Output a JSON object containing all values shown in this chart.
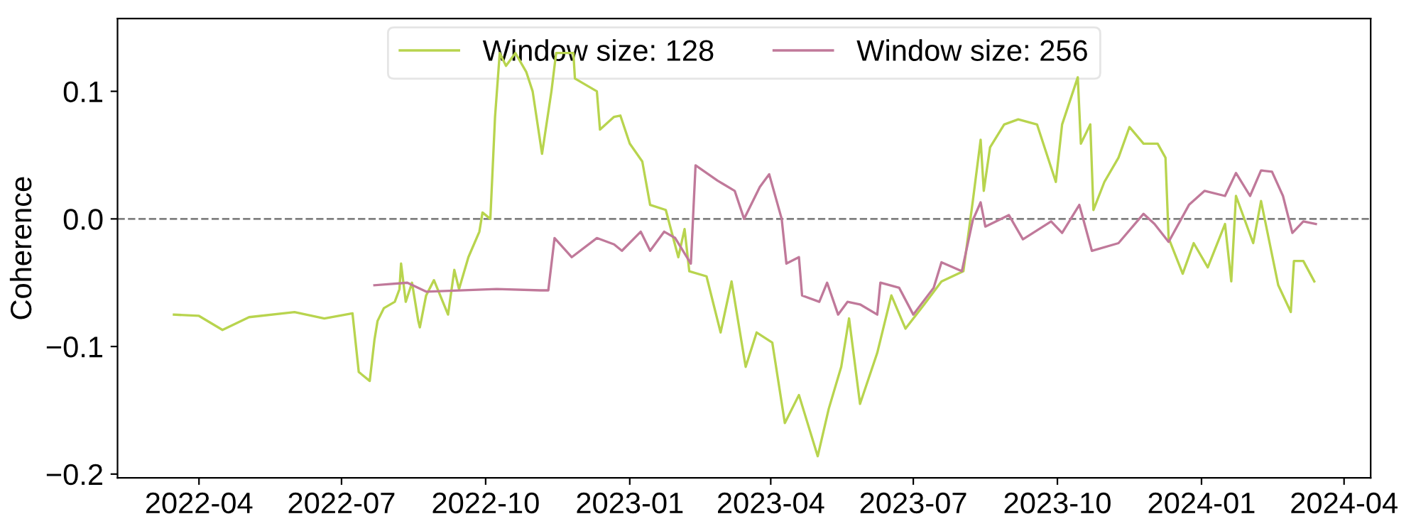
{
  "chart_data": {
    "type": "line",
    "ylabel": "Coherence",
    "legend": "top",
    "grid": false,
    "line_style": "solid",
    "marker": "none",
    "xlim": [
      "2022-02-08",
      "2024-04-18"
    ],
    "ylim": [
      -0.203,
      0.157
    ],
    "yticks": [
      {
        "value": -0.2,
        "label": "−0.2"
      },
      {
        "value": -0.1,
        "label": "−0.1"
      },
      {
        "value": 0.0,
        "label": "0.0"
      },
      {
        "value": 0.1,
        "label": "0.1"
      }
    ],
    "xticks": [
      {
        "value": "2022-04-01",
        "label": "2022-04"
      },
      {
        "value": "2022-07-01",
        "label": "2022-07"
      },
      {
        "value": "2022-10-01",
        "label": "2022-10"
      },
      {
        "value": "2023-01-01",
        "label": "2023-01"
      },
      {
        "value": "2023-04-01",
        "label": "2023-04"
      },
      {
        "value": "2023-07-01",
        "label": "2023-07"
      },
      {
        "value": "2023-10-01",
        "label": "2023-10"
      },
      {
        "value": "2024-01-01",
        "label": "2024-01"
      },
      {
        "value": "2024-04-01",
        "label": "2024-04"
      }
    ],
    "ref_lines": [
      {
        "axis": "y",
        "value": 0,
        "color": "#808080",
        "line_style": "dashed"
      }
    ],
    "series": [
      {
        "name": "Window size: 128",
        "color": "#b8d44e",
        "x": [
          "2022-03-16",
          "2022-04-01",
          "2022-04-16",
          "2022-05-03",
          "2022-06-01",
          "2022-06-20",
          "2022-07-08",
          "2022-07-12",
          "2022-07-19",
          "2022-07-22",
          "2022-07-24",
          "2022-07-28",
          "2022-08-04",
          "2022-08-07",
          "2022-08-08",
          "2022-08-11",
          "2022-08-15",
          "2022-08-19",
          "2022-08-20",
          "2022-08-24",
          "2022-08-29",
          "2022-09-07",
          "2022-09-11",
          "2022-09-14",
          "2022-09-20",
          "2022-09-27",
          "2022-09-29",
          "2022-10-04",
          "2022-10-07",
          "2022-10-10",
          "2022-10-14",
          "2022-10-20",
          "2022-10-27",
          "2022-10-31",
          "2022-11-06",
          "2022-11-12",
          "2022-11-15",
          "2022-11-26",
          "2022-11-27",
          "2022-12-11",
          "2022-12-13",
          "2022-12-22",
          "2022-12-26",
          "2023-01-01",
          "2023-01-09",
          "2023-01-14",
          "2023-01-24",
          "2023-02-01",
          "2023-02-05",
          "2023-02-08",
          "2023-02-19",
          "2023-02-28",
          "2023-03-07",
          "2023-03-16",
          "2023-03-23",
          "2023-04-02",
          "2023-04-10",
          "2023-04-19",
          "2023-05-01",
          "2023-05-08",
          "2023-05-16",
          "2023-05-21",
          "2023-05-28",
          "2023-06-08",
          "2023-06-17",
          "2023-06-26",
          "2023-07-08",
          "2023-07-19",
          "2023-08-02",
          "2023-08-08",
          "2023-08-13",
          "2023-08-15",
          "2023-08-19",
          "2023-08-28",
          "2023-09-06",
          "2023-09-18",
          "2023-09-30",
          "2023-10-04",
          "2023-10-14",
          "2023-10-16",
          "2023-10-22",
          "2023-10-24",
          "2023-10-31",
          "2023-11-09",
          "2023-11-16",
          "2023-11-25",
          "2023-12-04",
          "2023-12-09",
          "2023-12-11",
          "2023-12-20",
          "2023-12-27",
          "2024-01-05",
          "2024-01-16",
          "2024-01-20",
          "2024-01-23",
          "2024-02-03",
          "2024-02-08",
          "2024-02-19",
          "2024-02-27",
          "2024-02-29",
          "2024-03-06",
          "2024-03-13"
        ],
        "values": [
          -0.075,
          -0.076,
          -0.087,
          -0.077,
          -0.073,
          -0.078,
          -0.074,
          -0.12,
          -0.127,
          -0.095,
          -0.08,
          -0.07,
          -0.065,
          -0.055,
          -0.035,
          -0.065,
          -0.05,
          -0.08,
          -0.085,
          -0.06,
          -0.048,
          -0.075,
          -0.04,
          -0.055,
          -0.03,
          -0.01,
          0.005,
          0.0,
          0.08,
          0.13,
          0.12,
          0.13,
          0.115,
          0.1,
          0.051,
          0.1,
          0.13,
          0.13,
          0.11,
          0.1,
          0.07,
          0.08,
          0.081,
          0.059,
          0.045,
          0.011,
          0.007,
          -0.03,
          -0.008,
          -0.041,
          -0.045,
          -0.089,
          -0.049,
          -0.116,
          -0.089,
          -0.097,
          -0.16,
          -0.138,
          -0.186,
          -0.149,
          -0.116,
          -0.078,
          -0.145,
          -0.105,
          -0.06,
          -0.086,
          -0.067,
          -0.049,
          -0.041,
          0.014,
          0.062,
          0.022,
          0.056,
          0.074,
          0.078,
          0.074,
          0.029,
          0.074,
          0.111,
          0.059,
          0.074,
          0.007,
          0.029,
          0.048,
          0.072,
          0.059,
          0.059,
          0.048,
          -0.015,
          -0.043,
          -0.019,
          -0.038,
          -0.004,
          -0.049,
          0.018,
          -0.019,
          0.014,
          -0.052,
          -0.073,
          -0.033,
          -0.033,
          -0.049
        ]
      },
      {
        "name": "Window size: 256",
        "color": "#c0799a",
        "x": [
          "2022-07-22",
          "2022-08-12",
          "2022-08-24",
          "2022-10-08",
          "2022-11-05",
          "2022-11-10",
          "2022-11-14",
          "2022-11-25",
          "2022-12-11",
          "2022-12-22",
          "2022-12-27",
          "2023-01-08",
          "2023-01-14",
          "2023-01-23",
          "2023-01-30",
          "2023-02-09",
          "2023-02-12",
          "2023-02-26",
          "2023-03-09",
          "2023-03-15",
          "2023-03-25",
          "2023-03-31",
          "2023-04-08",
          "2023-04-11",
          "2023-04-19",
          "2023-04-21",
          "2023-05-02",
          "2023-05-07",
          "2023-05-14",
          "2023-05-20",
          "2023-05-28",
          "2023-06-08",
          "2023-06-10",
          "2023-06-22",
          "2023-07-01",
          "2023-07-14",
          "2023-07-19",
          "2023-08-01",
          "2023-08-08",
          "2023-08-13",
          "2023-08-16",
          "2023-08-31",
          "2023-09-09",
          "2023-09-27",
          "2023-10-04",
          "2023-10-15",
          "2023-10-23",
          "2023-11-09",
          "2023-11-25",
          "2023-12-02",
          "2023-12-11",
          "2023-12-24",
          "2024-01-03",
          "2024-01-16",
          "2024-01-23",
          "2024-02-01",
          "2024-02-08",
          "2024-02-15",
          "2024-02-22",
          "2024-02-28",
          "2024-03-06",
          "2024-03-14"
        ],
        "values": [
          -0.052,
          -0.05,
          -0.057,
          -0.055,
          -0.056,
          -0.056,
          -0.015,
          -0.03,
          -0.015,
          -0.02,
          -0.025,
          -0.01,
          -0.025,
          -0.01,
          -0.015,
          -0.035,
          0.042,
          0.03,
          0.022,
          0.0,
          0.025,
          0.035,
          0.0,
          -0.035,
          -0.03,
          -0.06,
          -0.065,
          -0.05,
          -0.075,
          -0.065,
          -0.067,
          -0.075,
          -0.05,
          -0.054,
          -0.075,
          -0.054,
          -0.034,
          -0.041,
          -0.001,
          0.013,
          -0.006,
          0.003,
          -0.016,
          -0.002,
          -0.011,
          0.011,
          -0.025,
          -0.019,
          0.004,
          -0.004,
          -0.018,
          0.011,
          0.022,
          0.018,
          0.036,
          0.018,
          0.038,
          0.037,
          0.018,
          -0.011,
          -0.002,
          -0.004
        ]
      }
    ]
  }
}
